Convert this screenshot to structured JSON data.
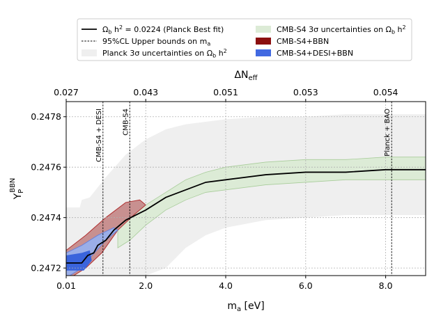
{
  "chart_data": {
    "type": "line",
    "xlabel_main": "m",
    "xlabel_sub": "a",
    "xlabel_unit": "[eV]",
    "ylabel_main": "Y",
    "ylabel_sub": "P",
    "ylabel_sup": "BBN",
    "top_xlabel_main": "ΔN",
    "top_xlabel_sub": "eff",
    "xlim": [
      0.01,
      9.0
    ],
    "ylim": [
      0.24717,
      0.24786
    ],
    "x_ticks": [
      {
        "value": 0.01,
        "label": "0.01"
      },
      {
        "value": 2.0,
        "label": "2.0"
      },
      {
        "value": 4.0,
        "label": "4.0"
      },
      {
        "value": 6.0,
        "label": "6.0"
      },
      {
        "value": 8.0,
        "label": "8.0"
      }
    ],
    "y_ticks": [
      {
        "value": 0.2472,
        "label": "0.2472"
      },
      {
        "value": 0.2474,
        "label": "0.2474"
      },
      {
        "value": 0.2476,
        "label": "0.2476"
      },
      {
        "value": 0.2478,
        "label": "0.2478"
      }
    ],
    "top_ticks": [
      {
        "x": 0.01,
        "label": "0.027"
      },
      {
        "x": 2.0,
        "label": "0.043"
      },
      {
        "x": 4.0,
        "label": "0.051"
      },
      {
        "x": 6.0,
        "label": "0.053"
      },
      {
        "x": 8.0,
        "label": "0.054"
      }
    ],
    "grid": true,
    "legend": {
      "placement": "top",
      "col1": [
        {
          "kind": "line",
          "color": "#000000",
          "dash": false,
          "pre": "Ω",
          "pre_sub": "b",
          "mid": " h",
          "mid_sup": "2",
          "post": " = 0.0224 (Planck Best fit)"
        },
        {
          "kind": "line",
          "color": "#000000",
          "dash": true,
          "pre": "95%CL Upper bounds on m",
          "pre_sub": "a",
          "mid": "",
          "mid_sup": "",
          "post": ""
        },
        {
          "kind": "patch",
          "color": "#efefef",
          "pre": "Planck 3σ uncertainties on Ω",
          "pre_sub": "b",
          "mid": " h",
          "mid_sup": "2",
          "post": ""
        }
      ],
      "col2": [
        {
          "kind": "patch",
          "color": "#dcebd6",
          "pre": "CMB-S4 3σ uncertainties on Ω",
          "pre_sub": "b",
          "mid": " h",
          "mid_sup": "2",
          "post": ""
        },
        {
          "kind": "patch",
          "color": "#8b0f0f",
          "pre": "CMB-S4+BBN",
          "pre_sub": "",
          "mid": "",
          "mid_sup": "",
          "post": ""
        },
        {
          "kind": "patch",
          "color": "#4169e1",
          "pre": "CMB-S4+DESI+BBN",
          "pre_sub": "",
          "mid": "",
          "mid_sup": "",
          "post": ""
        }
      ]
    },
    "vlines": [
      {
        "x": 0.93,
        "label": "CMB-S4 + DESI"
      },
      {
        "x": 1.6,
        "label": "CMB-S4"
      },
      {
        "x": 8.15,
        "label": "Planck + BAO"
      }
    ],
    "series": [
      {
        "kind": "band",
        "color": "#efefef",
        "points": [
          [
            0.01,
            0.24717,
            0.24744
          ],
          [
            0.35,
            0.24717,
            0.24744
          ],
          [
            0.4,
            0.24717,
            0.24747
          ],
          [
            0.6,
            0.24717,
            0.24748
          ],
          [
            1.0,
            0.24717,
            0.24756
          ],
          [
            1.5,
            0.24717,
            0.24765
          ],
          [
            2.0,
            0.24717,
            0.24771
          ],
          [
            2.5,
            0.2472,
            0.24775
          ],
          [
            3.0,
            0.24728,
            0.24777
          ],
          [
            3.5,
            0.24733,
            0.24778
          ],
          [
            4.0,
            0.24736,
            0.24779
          ],
          [
            5.0,
            0.24739,
            0.2478
          ],
          [
            6.0,
            0.2474,
            0.2478
          ],
          [
            7.0,
            0.24741,
            0.24781
          ],
          [
            8.0,
            0.24741,
            0.24781
          ],
          [
            9.0,
            0.24741,
            0.24781
          ]
        ]
      },
      {
        "kind": "band",
        "color": "#dcebd6",
        "edge": "#a8cc9a",
        "points": [
          [
            1.3,
            0.24728,
            0.24738
          ],
          [
            1.6,
            0.24731,
            0.24741
          ],
          [
            2.0,
            0.24737,
            0.24745
          ],
          [
            2.5,
            0.24743,
            0.2475
          ],
          [
            3.0,
            0.24747,
            0.24755
          ],
          [
            3.5,
            0.2475,
            0.24758
          ],
          [
            4.0,
            0.24751,
            0.2476
          ],
          [
            5.0,
            0.24753,
            0.24762
          ],
          [
            6.0,
            0.24754,
            0.24763
          ],
          [
            7.0,
            0.24755,
            0.24763
          ],
          [
            8.0,
            0.24755,
            0.24764
          ],
          [
            9.0,
            0.24755,
            0.24764
          ]
        ]
      },
      {
        "kind": "polygon",
        "color": "#c89090",
        "edge": "#b03030",
        "points": [
          [
            0.01,
            0.24727
          ],
          [
            0.5,
            0.24733
          ],
          [
            1.0,
            0.2474
          ],
          [
            1.5,
            0.24746
          ],
          [
            1.85,
            0.24747
          ],
          [
            2.0,
            0.24745
          ],
          [
            1.7,
            0.24741
          ],
          [
            1.3,
            0.24735
          ],
          [
            0.9,
            0.24726
          ],
          [
            0.5,
            0.2472
          ],
          [
            0.2,
            0.24717
          ],
          [
            0.01,
            0.24717
          ]
        ]
      },
      {
        "kind": "polygon",
        "color": "#9aaee8",
        "edge": "#6a80d8",
        "points": [
          [
            0.01,
            0.24726
          ],
          [
            0.4,
            0.24729
          ],
          [
            0.8,
            0.24733
          ],
          [
            1.2,
            0.24736
          ],
          [
            1.3,
            0.24735
          ],
          [
            1.0,
            0.24731
          ],
          [
            0.6,
            0.24724
          ],
          [
            0.3,
            0.24719
          ],
          [
            0.1,
            0.24717
          ],
          [
            0.01,
            0.24717
          ]
        ]
      },
      {
        "kind": "polygon",
        "color": "#3a64dc",
        "points": [
          [
            0.01,
            0.24725
          ],
          [
            0.4,
            0.24726
          ],
          [
            0.6,
            0.24727
          ],
          [
            0.65,
            0.24723
          ],
          [
            0.45,
            0.24719
          ],
          [
            0.2,
            0.24719
          ],
          [
            0.01,
            0.24719
          ]
        ]
      },
      {
        "kind": "line",
        "color": "#000000",
        "points": [
          [
            0.01,
            0.24722
          ],
          [
            0.4,
            0.24722
          ],
          [
            0.55,
            0.24725
          ],
          [
            0.7,
            0.24726
          ],
          [
            0.8,
            0.24729
          ],
          [
            1.0,
            0.24731
          ],
          [
            1.2,
            0.24735
          ],
          [
            1.5,
            0.24739
          ],
          [
            2.0,
            0.24743
          ],
          [
            2.5,
            0.24748
          ],
          [
            3.0,
            0.24751
          ],
          [
            3.5,
            0.24754
          ],
          [
            4.0,
            0.24755
          ],
          [
            5.0,
            0.24757
          ],
          [
            6.0,
            0.24758
          ],
          [
            7.0,
            0.24758
          ],
          [
            8.0,
            0.24759
          ],
          [
            9.0,
            0.24759
          ]
        ]
      }
    ]
  }
}
